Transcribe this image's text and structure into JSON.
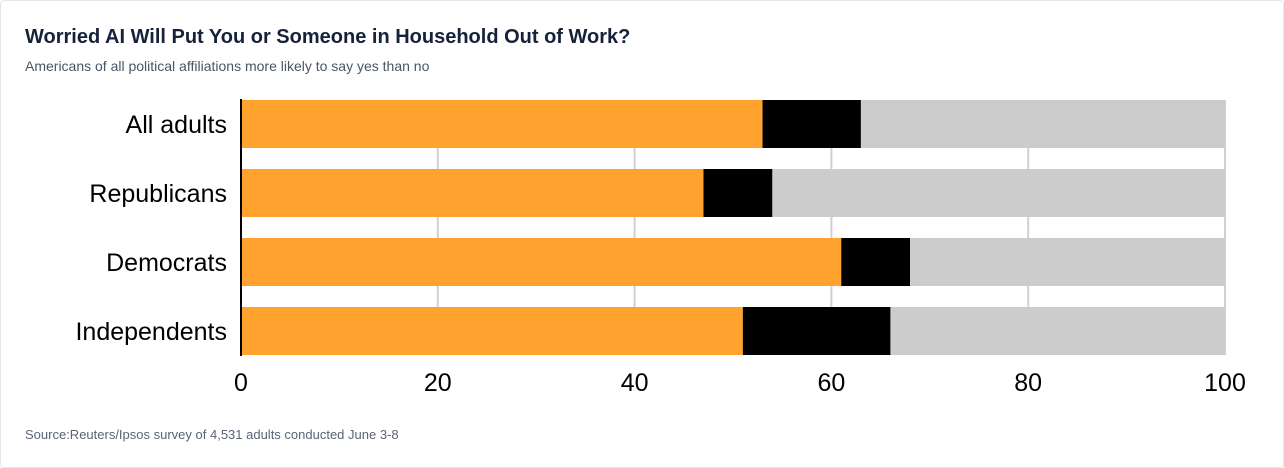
{
  "title": "Worried AI Will Put You or Someone in Household Out of Work?",
  "subtitle": "Americans of all political affiliations more likely to say yes than no",
  "source": "Source:Reuters/Ipsos survey of 4,531 adults conducted June 3-8",
  "colors": {
    "yes": "#FFA22E",
    "middle": "#000000",
    "no": "#CCCCCC",
    "grid": "#D0D0D0",
    "text": "#000000"
  },
  "chart_data": {
    "type": "bar",
    "orientation": "horizontal",
    "stacked": true,
    "categories": [
      "All adults",
      "Republicans",
      "Democrats",
      "Independents"
    ],
    "series": [
      {
        "values": [
          53,
          47,
          61,
          51
        ],
        "color": "#FFA22E"
      },
      {
        "values": [
          10,
          7,
          7,
          15
        ],
        "color": "#000000"
      },
      {
        "values": [
          37,
          46,
          32,
          34
        ],
        "color": "#CCCCCC"
      }
    ],
    "xlim": [
      0,
      100
    ],
    "xticks": [
      "0",
      "20",
      "40",
      "60",
      "80",
      "100"
    ],
    "grid": true,
    "legend": "none"
  }
}
